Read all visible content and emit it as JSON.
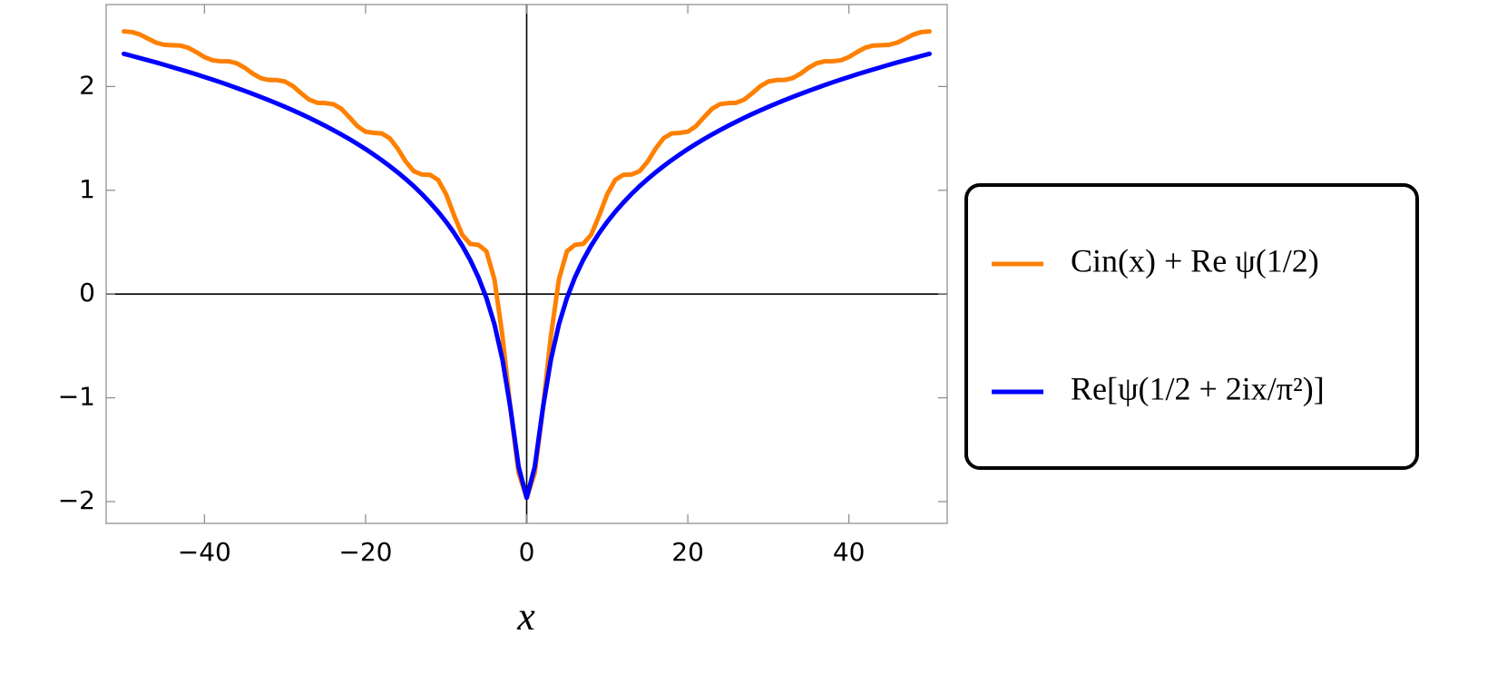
{
  "chart_data": {
    "type": "line",
    "xlabel": "x",
    "x": [
      -50,
      -49,
      -48,
      -47,
      -46,
      -45,
      -44,
      -43,
      -42,
      -41,
      -40,
      -39,
      -38,
      -37,
      -36,
      -35,
      -34,
      -33,
      -32,
      -31,
      -30,
      -29,
      -28,
      -27,
      -26,
      -25,
      -24,
      -23,
      -22,
      -21,
      -20,
      -19,
      -18,
      -17,
      -16,
      -15,
      -14,
      -13,
      -12,
      -11,
      -10,
      -9,
      -8,
      -7,
      -6,
      -5,
      -4,
      -3,
      -2,
      -1,
      0,
      1,
      2,
      3,
      4,
      5,
      6,
      7,
      8,
      9,
      10,
      11,
      12,
      13,
      14,
      15,
      16,
      17,
      18,
      19,
      20,
      21,
      22,
      23,
      24,
      25,
      26,
      27,
      28,
      29,
      30,
      31,
      32,
      33,
      34,
      35,
      36,
      37,
      38,
      39,
      40,
      41,
      42,
      43,
      44,
      45,
      46,
      47,
      48,
      49,
      50
    ],
    "series": [
      {
        "name": "Cin(x) + Re ψ(1/2)",
        "color": "#ff8000",
        "values": [
          2.531,
          2.525,
          2.501,
          2.461,
          2.423,
          2.402,
          2.398,
          2.395,
          2.373,
          2.331,
          2.284,
          2.253,
          2.244,
          2.243,
          2.225,
          2.181,
          2.124,
          2.08,
          2.063,
          2.062,
          2.048,
          2.003,
          1.935,
          1.874,
          1.843,
          1.84,
          1.83,
          1.785,
          1.703,
          1.617,
          1.565,
          1.553,
          1.548,
          1.502,
          1.401,
          1.275,
          1.183,
          1.152,
          1.149,
          1.101,
          0.962,
          0.756,
          0.571,
          0.483,
          0.474,
          0.413,
          0.141,
          -0.407,
          -1.116,
          -1.724,
          -1.964,
          -1.724,
          -1.116,
          -0.407,
          0.141,
          0.413,
          0.474,
          0.483,
          0.571,
          0.756,
          0.962,
          1.101,
          1.149,
          1.152,
          1.183,
          1.275,
          1.401,
          1.502,
          1.548,
          1.553,
          1.565,
          1.617,
          1.703,
          1.785,
          1.83,
          1.84,
          1.843,
          1.874,
          1.935,
          2.003,
          2.048,
          2.062,
          2.063,
          2.08,
          2.124,
          2.181,
          2.225,
          2.243,
          2.244,
          2.253,
          2.284,
          2.331,
          2.373,
          2.395,
          2.398,
          2.402,
          2.423,
          2.461,
          2.501,
          2.525,
          2.531
        ]
      },
      {
        "name": "Re[ψ(1/2 + 2ix/π²)]",
        "color": "#0000ff",
        "values": [
          2.315,
          2.295,
          2.274,
          2.253,
          2.232,
          2.21,
          2.187,
          2.164,
          2.141,
          2.117,
          2.092,
          2.067,
          2.041,
          2.014,
          1.986,
          1.958,
          1.929,
          1.899,
          1.868,
          1.837,
          1.804,
          1.77,
          1.735,
          1.698,
          1.66,
          1.621,
          1.58,
          1.537,
          1.493,
          1.446,
          1.397,
          1.345,
          1.291,
          1.233,
          1.172,
          1.107,
          1.038,
          0.963,
          0.881,
          0.793,
          0.696,
          0.588,
          0.466,
          0.327,
          0.163,
          -0.037,
          -0.292,
          -0.635,
          -1.106,
          -1.665,
          -1.964,
          -1.665,
          -1.106,
          -0.635,
          -0.292,
          -0.037,
          0.163,
          0.327,
          0.466,
          0.588,
          0.696,
          0.793,
          0.881,
          0.963,
          1.038,
          1.107,
          1.172,
          1.233,
          1.291,
          1.345,
          1.397,
          1.446,
          1.493,
          1.537,
          1.58,
          1.621,
          1.66,
          1.698,
          1.735,
          1.77,
          1.804,
          1.837,
          1.868,
          1.899,
          1.929,
          1.958,
          1.986,
          2.014,
          2.041,
          2.067,
          2.092,
          2.117,
          2.141,
          2.164,
          2.187,
          2.21,
          2.232,
          2.253,
          2.274,
          2.295,
          2.315
        ]
      }
    ],
    "xlim": [
      -52.2,
      52.2
    ],
    "ylim": [
      -2.21,
      2.79
    ],
    "xticks": [
      {
        "value": -40,
        "label": "−40"
      },
      {
        "value": -20,
        "label": "−20"
      },
      0,
      20,
      40
    ],
    "yticks": [
      {
        "value": -2,
        "label": "−2"
      },
      {
        "value": -1,
        "label": "−1"
      },
      0,
      1,
      2
    ]
  }
}
